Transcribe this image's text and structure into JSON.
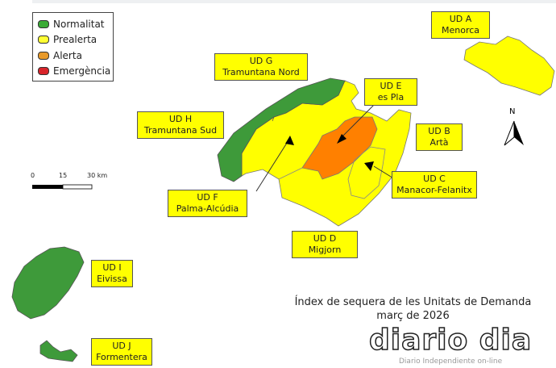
{
  "legend": {
    "items": [
      {
        "label": "Normalitat",
        "color": "#3bab36"
      },
      {
        "label": "Prealerta",
        "color": "#ffff33"
      },
      {
        "label": "Alerta",
        "color": "#e89a2a"
      },
      {
        "label": "Emergència",
        "color": "#d8242a"
      }
    ]
  },
  "units": [
    {
      "code": "UD A",
      "name": "Menorca",
      "status": "Prealerta"
    },
    {
      "code": "UD B",
      "name": "Artà",
      "status": "Prealerta"
    },
    {
      "code": "UD C",
      "name": "Manacor-Felanitx",
      "status": "Prealerta"
    },
    {
      "code": "UD D",
      "name": "Migjorn",
      "status": "Prealerta"
    },
    {
      "code": "UD E",
      "name": "es Pla",
      "status": "Alerta"
    },
    {
      "code": "UD F",
      "name": "Palma-Alcúdia",
      "status": "Prealerta"
    },
    {
      "code": "UD G",
      "name": "Tramuntana Nord",
      "status": "Normalitat"
    },
    {
      "code": "UD H",
      "name": "Tramuntana Sud",
      "status": "Normalitat"
    },
    {
      "code": "UD I",
      "name": "Eivissa",
      "status": "Normalitat"
    },
    {
      "code": "UD J",
      "name": "Formentera",
      "status": "Normalitat"
    }
  ],
  "scale": {
    "labels": [
      "0",
      "15",
      "30 km"
    ]
  },
  "north": "N",
  "title": {
    "line1": "Índex de sequera de les Unitats de Demanda",
    "line2": "març de 2026"
  },
  "watermark": {
    "logo": "diario dia",
    "tagline": "Diario Independiente on-line"
  },
  "colors": {
    "normalitat_fill": "#3e9a3a",
    "prealerta_fill": "#ffff00",
    "alerta_fill": "#ff8000"
  }
}
